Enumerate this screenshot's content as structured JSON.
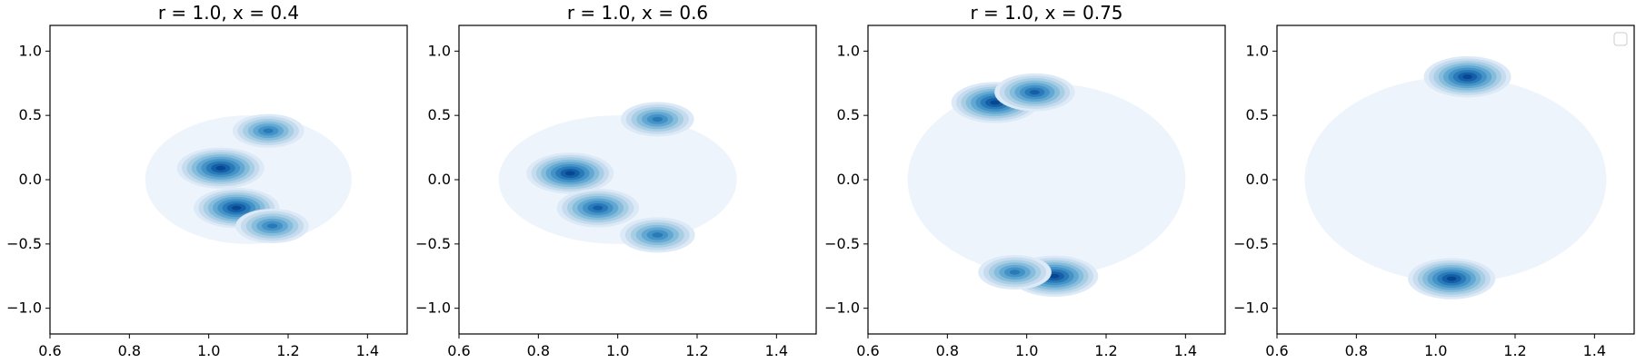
{
  "chart_data": [
    {
      "type": "kde-contour",
      "title": "r = 1.0, x = 0.4",
      "xlim": [
        0.6,
        1.5
      ],
      "ylim": [
        -1.2,
        1.2
      ],
      "xticks": [
        0.6,
        0.8,
        1.0,
        1.2,
        1.4
      ],
      "xtick_labels": [
        "0.6",
        "0.8",
        "1.0",
        "1.2",
        "1.4"
      ],
      "yticks": [
        -1.0,
        -0.5,
        0.0,
        0.5,
        1.0
      ],
      "ytick_labels": [
        "−1.0",
        "−0.5",
        "0.0",
        "0.5",
        "1.0"
      ],
      "colormap": "Blues",
      "background_spread": {
        "cx": 1.1,
        "cy": 0.0,
        "sx": 0.26,
        "sy": 0.5
      },
      "density_peaks": [
        {
          "x": 1.03,
          "y": 0.09,
          "weight": 1.0
        },
        {
          "x": 1.07,
          "y": -0.22,
          "weight": 0.95
        },
        {
          "x": 1.15,
          "y": 0.38,
          "weight": 0.55
        },
        {
          "x": 1.16,
          "y": -0.36,
          "weight": 0.6
        }
      ],
      "legend": false
    },
    {
      "type": "kde-contour",
      "title": "r = 1.0, x = 0.6",
      "xlim": [
        0.6,
        1.5
      ],
      "ylim": [
        -1.2,
        1.2
      ],
      "xticks": [
        0.6,
        0.8,
        1.0,
        1.2,
        1.4
      ],
      "xtick_labels": [
        "0.6",
        "0.8",
        "1.0",
        "1.2",
        "1.4"
      ],
      "yticks": [
        -1.0,
        -0.5,
        0.0,
        0.5,
        1.0
      ],
      "ytick_labels": [
        "−1.0",
        "−0.5",
        "0.0",
        "0.5",
        "1.0"
      ],
      "colormap": "Blues",
      "background_spread": {
        "cx": 1.0,
        "cy": 0.0,
        "sx": 0.3,
        "sy": 0.5
      },
      "density_peaks": [
        {
          "x": 0.88,
          "y": 0.05,
          "weight": 1.0
        },
        {
          "x": 0.95,
          "y": -0.22,
          "weight": 0.85
        },
        {
          "x": 1.1,
          "y": 0.47,
          "weight": 0.6
        },
        {
          "x": 1.1,
          "y": -0.43,
          "weight": 0.65
        }
      ],
      "legend": false
    },
    {
      "type": "kde-contour",
      "title": "r = 1.0, x = 0.75",
      "xlim": [
        0.6,
        1.5
      ],
      "ylim": [
        -1.2,
        1.2
      ],
      "xticks": [
        0.6,
        0.8,
        1.0,
        1.2,
        1.4
      ],
      "xtick_labels": [
        "0.6",
        "0.8",
        "1.0",
        "1.2",
        "1.4"
      ],
      "yticks": [
        -1.0,
        -0.5,
        0.0,
        0.5,
        1.0
      ],
      "ytick_labels": [
        "−1.0",
        "−0.5",
        "0.0",
        "0.5",
        "1.0"
      ],
      "colormap": "Blues",
      "background_spread": {
        "cx": 1.05,
        "cy": 0.0,
        "sx": 0.35,
        "sy": 0.75
      },
      "density_peaks": [
        {
          "x": 0.92,
          "y": 0.6,
          "weight": 1.0
        },
        {
          "x": 1.02,
          "y": 0.68,
          "weight": 0.8
        },
        {
          "x": 1.07,
          "y": -0.75,
          "weight": 1.0
        },
        {
          "x": 0.97,
          "y": -0.72,
          "weight": 0.6
        }
      ],
      "legend": false
    },
    {
      "type": "kde-contour",
      "title": "",
      "xlim": [
        0.6,
        1.5
      ],
      "ylim": [
        -1.2,
        1.2
      ],
      "xticks": [
        0.6,
        0.8,
        1.0,
        1.2,
        1.4
      ],
      "xtick_labels": [
        "0.6",
        "0.8",
        "1.0",
        "1.2",
        "1.4"
      ],
      "yticks": [
        -1.0,
        -0.5,
        0.0,
        0.5,
        1.0
      ],
      "ytick_labels": [
        "−1.0",
        "−0.5",
        "0.0",
        "0.5",
        "1.0"
      ],
      "colormap": "Blues",
      "background_spread": {
        "cx": 1.05,
        "cy": 0.0,
        "sx": 0.38,
        "sy": 0.8
      },
      "density_peaks": [
        {
          "x": 1.08,
          "y": 0.8,
          "weight": 1.0
        },
        {
          "x": 1.04,
          "y": -0.77,
          "weight": 1.0
        }
      ],
      "legend": true,
      "legend_location": "top-right",
      "legend_entries": []
    }
  ],
  "colors": {
    "levels": [
      "#eef4fb",
      "#dce9f6",
      "#c7dbef",
      "#a8cee4",
      "#86bcdc",
      "#63a7d3",
      "#4493c6",
      "#2a7ab9",
      "#1460a8",
      "#08478f"
    ]
  }
}
